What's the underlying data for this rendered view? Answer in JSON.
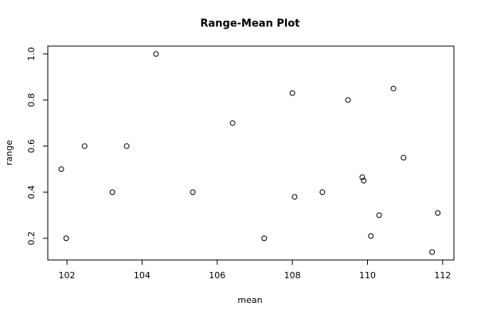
{
  "chart_data": {
    "type": "scatter",
    "title": "Range-Mean Plot",
    "x_label": "mean",
    "y_label": "range",
    "x": [
      101.85,
      101.98,
      102.47,
      103.21,
      103.59,
      104.37,
      105.35,
      106.41,
      107.25,
      108.0,
      108.06,
      108.8,
      109.48,
      109.86,
      109.9,
      110.09,
      110.31,
      110.69,
      110.96,
      111.72,
      111.87
    ],
    "values": [
      0.5,
      0.2,
      0.6,
      0.4,
      0.6,
      1.0,
      0.4,
      0.7,
      0.2,
      0.83,
      0.38,
      0.4,
      0.8,
      0.465,
      0.45,
      0.21,
      0.3,
      0.85,
      0.55,
      0.14,
      0.31
    ],
    "color": "#000000",
    "xlim": [
      101.49,
      112.3
    ],
    "ylim": [
      0.106,
      1.034
    ],
    "xticks": [
      102,
      104,
      106,
      108,
      110,
      112
    ],
    "yticks": [
      {
        "value": 0.2,
        "label": "0.2"
      },
      {
        "value": 0.4,
        "label": "0.4"
      },
      {
        "value": 0.6,
        "label": "0.6"
      },
      {
        "value": 0.8,
        "label": "0.8"
      },
      {
        "value": 1.0,
        "label": "1.0"
      }
    ]
  }
}
